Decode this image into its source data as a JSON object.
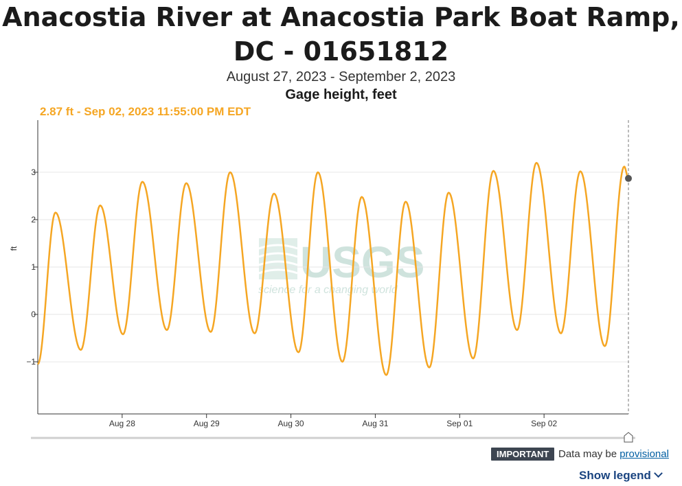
{
  "header": {
    "title_line1": "Anacostia River at Anacostia Park Boat Ramp,",
    "title_line2": "DC - 01651812",
    "date_range": "August 27, 2023 - September 2, 2023",
    "parameter": "Gage height, feet"
  },
  "tooltip": {
    "text": "2.87 ft - Sep 02, 2023 11:55:00 PM EDT"
  },
  "watermark": {
    "logo": "USGS",
    "tagline": "science for a changing world"
  },
  "footer": {
    "badge": "IMPORTANT",
    "notice": "Data may be",
    "link": "provisional",
    "legend_button": "Show legend"
  },
  "colors": {
    "series": "#f5a623",
    "marker": "#555555",
    "axis": "#333333",
    "grid": "#e6e6e6"
  },
  "chart_data": {
    "type": "line",
    "title": "Anacostia River at Anacostia Park Boat Ramp, DC - 01651812",
    "subtitle": "August 27, 2023 - September 2, 2023",
    "ylabel": "ft",
    "xlabel": "",
    "xlim_days": [
      0,
      7
    ],
    "ylim": [
      -2.1,
      4.1
    ],
    "yticks": [
      -1,
      0,
      1,
      2,
      3
    ],
    "xticks": [
      {
        "label": "Aug 28",
        "day": 1
      },
      {
        "label": "Aug 29",
        "day": 2
      },
      {
        "label": "Aug 30",
        "day": 3
      },
      {
        "label": "Aug 31",
        "day": 4
      },
      {
        "label": "Sep 01",
        "day": 5
      },
      {
        "label": "Sep 02",
        "day": 6
      }
    ],
    "grid": true,
    "series": [
      {
        "values": [
          [
            0.0,
            -1.05
          ],
          [
            0.21,
            2.15
          ],
          [
            0.51,
            -0.75
          ],
          [
            0.74,
            2.3
          ],
          [
            1.01,
            -0.42
          ],
          [
            1.24,
            2.8
          ],
          [
            1.53,
            -0.33
          ],
          [
            1.76,
            2.77
          ],
          [
            2.05,
            -0.37
          ],
          [
            2.28,
            3.0
          ],
          [
            2.57,
            -0.4
          ],
          [
            2.8,
            2.55
          ],
          [
            3.09,
            -0.8
          ],
          [
            3.32,
            3.0
          ],
          [
            3.61,
            -1.0
          ],
          [
            3.84,
            2.48
          ],
          [
            4.13,
            -1.28
          ],
          [
            4.36,
            2.38
          ],
          [
            4.64,
            -1.12
          ],
          [
            4.87,
            2.57
          ],
          [
            5.16,
            -0.93
          ],
          [
            5.4,
            3.03
          ],
          [
            5.68,
            -0.33
          ],
          [
            5.91,
            3.2
          ],
          [
            6.2,
            -0.4
          ],
          [
            6.43,
            3.02
          ],
          [
            6.72,
            -0.67
          ],
          [
            6.95,
            3.12
          ],
          [
            7.0,
            2.87
          ]
        ]
      }
    ],
    "current_point": {
      "day": 7.0,
      "value": 2.87
    }
  }
}
